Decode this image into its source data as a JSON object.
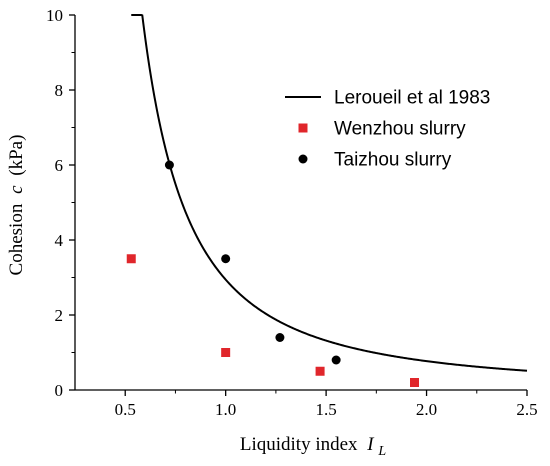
{
  "chart_data": {
    "type": "scatter",
    "xlabel": "Liquidity index",
    "xlabel_symbol": "I",
    "xlabel_subscript": "L",
    "ylabel": "Cohesion",
    "ylabel_symbol": "c",
    "ylabel_unit": "(kPa)",
    "xlim": [
      0.25,
      2.5
    ],
    "ylim": [
      0,
      10
    ],
    "x_ticks": [
      0.5,
      1.0,
      1.5,
      2.0,
      2.5
    ],
    "x_tick_labels": [
      "0.5",
      "1.0",
      "1.5",
      "2.0",
      "2.5"
    ],
    "y_ticks": [
      0,
      2,
      4,
      6,
      8,
      10
    ],
    "y_tick_labels": [
      "0",
      "2",
      "4",
      "6",
      "8",
      "10"
    ],
    "grid": false,
    "legend_position": "top-right",
    "series": [
      {
        "name": "Leroueil et al 1983",
        "kind": "line",
        "color": "#000000",
        "function": "c = 2 / (I_L - 0.21)^1.64",
        "x_range": [
          0.53,
          2.5
        ]
      },
      {
        "name": "Wenzhou slurry",
        "kind": "scatter",
        "marker": "square",
        "color": "#e0262b",
        "points": [
          [
            0.53,
            3.5
          ],
          [
            1.0,
            1.0
          ],
          [
            1.47,
            0.5
          ],
          [
            1.94,
            0.2
          ]
        ]
      },
      {
        "name": "Taizhou slurry",
        "kind": "scatter",
        "marker": "circle",
        "color": "#000000",
        "points": [
          [
            0.72,
            6.0
          ],
          [
            1.0,
            3.5
          ],
          [
            1.27,
            1.4
          ],
          [
            1.55,
            0.8
          ]
        ]
      }
    ]
  }
}
